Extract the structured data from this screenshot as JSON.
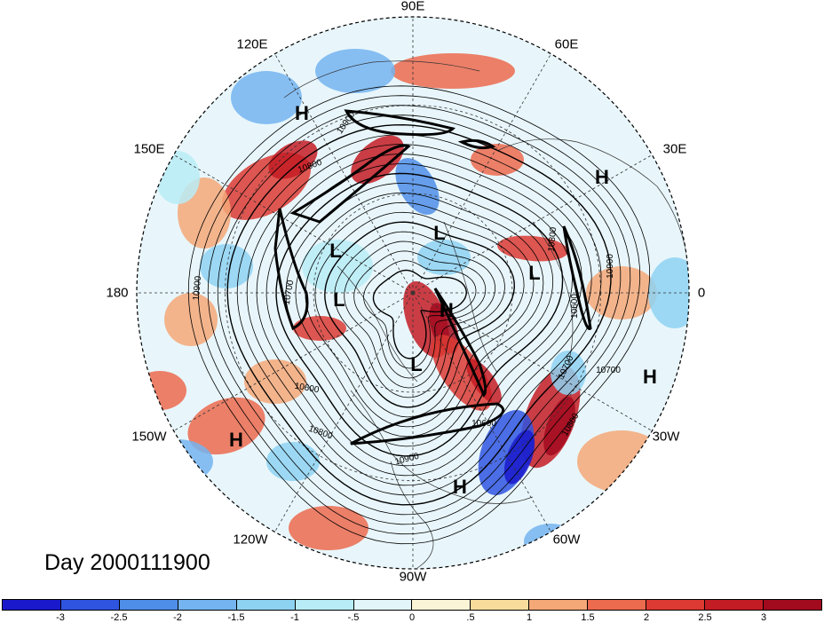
{
  "title": "Day 2000111900",
  "longitude_labels": [
    "90E",
    "60E",
    "30E",
    "0",
    "30W",
    "60W",
    "90W",
    "120W",
    "150W",
    "180",
    "150E",
    "120E"
  ],
  "pressure_centers": [
    "H",
    "H",
    "L",
    "L",
    "L",
    "L",
    "H",
    "L",
    "H",
    "H",
    "H"
  ],
  "contour_labels": [
    "10900",
    "10800",
    "10700",
    "10900",
    "10600",
    "10800",
    "10900",
    "10700",
    "10600",
    "10700",
    "10800",
    "10900",
    "10600",
    "10800"
  ],
  "colorbar": {
    "tick_labels": [
      "-3",
      "-2.5",
      "-2",
      "-1.5",
      "-1",
      "-.5",
      "0",
      ".5",
      "1",
      "1.5",
      "2",
      "2.5",
      "3"
    ],
    "colors": [
      "#1a1acc",
      "#2f55e0",
      "#4f8ee8",
      "#74b4f0",
      "#8ed2f2",
      "#b8ecf6",
      "#e2f6fa",
      "#fbf5d8",
      "#f8dc9c",
      "#f4a878",
      "#ec6a4e",
      "#dc3a32",
      "#c41c24",
      "#a20a1e"
    ]
  }
}
